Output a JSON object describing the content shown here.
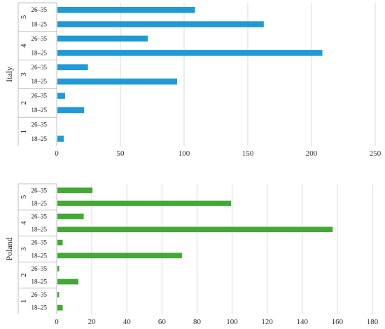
{
  "chart_data": [
    {
      "type": "bar",
      "orientation": "horizontal",
      "title": "",
      "panel_label": "Italy",
      "xlim": [
        0,
        250
      ],
      "x_ticks": [
        0,
        50,
        100,
        150,
        200,
        250
      ],
      "grid": true,
      "color": "#1f9ad6",
      "groups": [
        {
          "name": "1",
          "bars": [
            {
              "category": "18–25",
              "value": 5
            },
            {
              "category": "26–35",
              "value": 0
            }
          ]
        },
        {
          "name": "2",
          "bars": [
            {
              "category": "18–25",
              "value": 21
            },
            {
              "category": "26–35",
              "value": 6
            }
          ]
        },
        {
          "name": "3",
          "bars": [
            {
              "category": "18–25",
              "value": 94
            },
            {
              "category": "26–35",
              "value": 24
            }
          ]
        },
        {
          "name": "4",
          "bars": [
            {
              "category": "18–25",
              "value": 208
            },
            {
              "category": "26–35",
              "value": 71
            }
          ]
        },
        {
          "name": "5",
          "bars": [
            {
              "category": "18–25",
              "value": 162
            },
            {
              "category": "26–35",
              "value": 108
            }
          ]
        }
      ]
    },
    {
      "type": "bar",
      "orientation": "horizontal",
      "title": "",
      "panel_label": "Poland",
      "xlim": [
        0,
        180
      ],
      "x_ticks": [
        0,
        20,
        40,
        60,
        80,
        100,
        120,
        140,
        160,
        180
      ],
      "grid": true,
      "color": "#43a835",
      "groups": [
        {
          "name": "1",
          "bars": [
            {
              "category": "18–25",
              "value": 3
            },
            {
              "category": "26–35",
              "value": 1
            }
          ]
        },
        {
          "name": "2",
          "bars": [
            {
              "category": "18–25",
              "value": 12
            },
            {
              "category": "26–35",
              "value": 1
            }
          ]
        },
        {
          "name": "3",
          "bars": [
            {
              "category": "18–25",
              "value": 71
            },
            {
              "category": "26–35",
              "value": 3
            }
          ]
        },
        {
          "name": "4",
          "bars": [
            {
              "category": "18–25",
              "value": 157
            },
            {
              "category": "26–35",
              "value": 15
            }
          ]
        },
        {
          "name": "5",
          "bars": [
            {
              "category": "18–25",
              "value": 99
            },
            {
              "category": "26–35",
              "value": 20
            }
          ]
        }
      ]
    }
  ]
}
